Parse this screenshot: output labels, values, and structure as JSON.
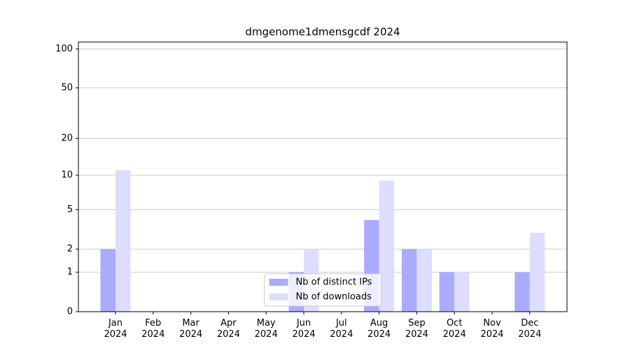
{
  "chart_data": {
    "type": "bar",
    "title": "dmgenome1dmensgcdf 2024",
    "categories": [
      "Jan 2024",
      "Feb 2024",
      "Mar 2024",
      "Apr 2024",
      "May 2024",
      "Jun 2024",
      "Jul 2024",
      "Aug 2024",
      "Sep 2024",
      "Oct 2024",
      "Nov 2024",
      "Dec 2024"
    ],
    "series": [
      {
        "name": "Nb of distinct IPs",
        "color": "#aaaaff",
        "values": [
          2,
          0,
          0,
          0,
          0,
          1,
          0,
          4,
          2,
          1,
          0,
          1
        ]
      },
      {
        "name": "Nb of downloads",
        "color": "#ddddff",
        "values": [
          11,
          0,
          0,
          0,
          0,
          2,
          0,
          9,
          2,
          1,
          0,
          3
        ]
      }
    ],
    "yscale": "log1p",
    "ylim": [
      0,
      113
    ],
    "yticks": [
      0,
      1,
      2,
      5,
      10,
      20,
      50,
      100
    ],
    "grid": true,
    "legend": "lower center"
  }
}
